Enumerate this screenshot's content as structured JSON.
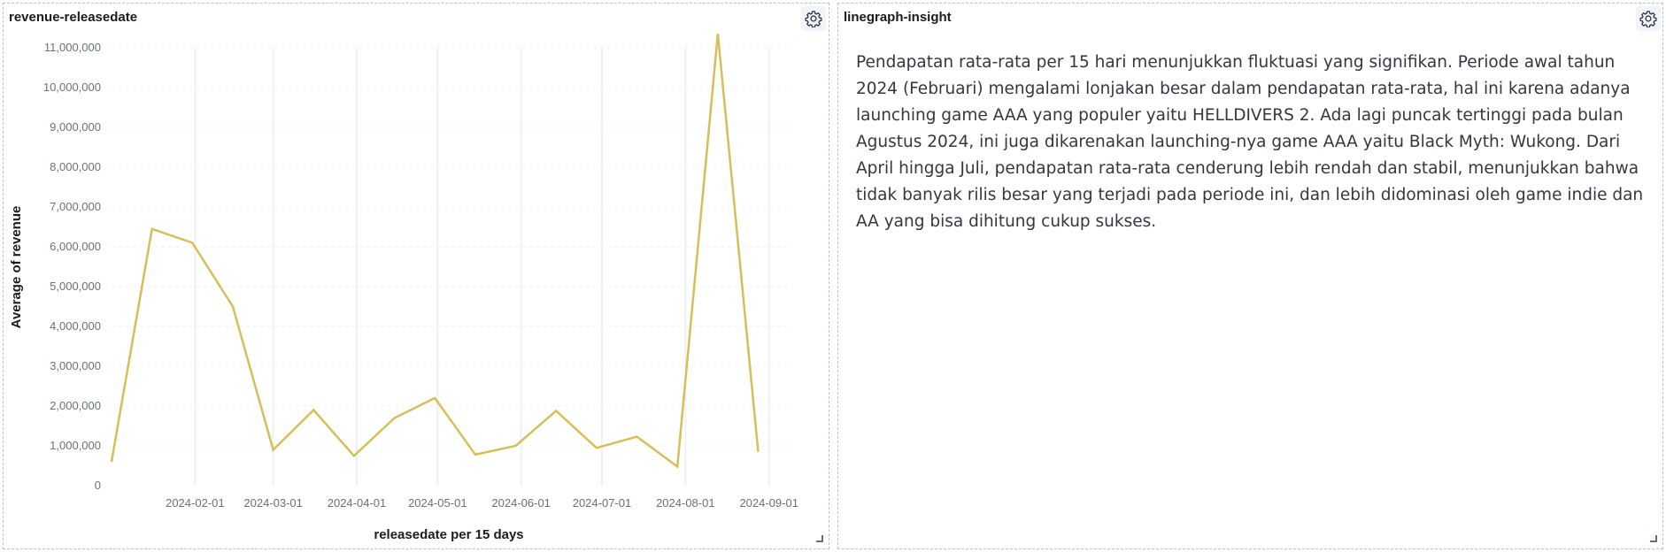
{
  "panels": {
    "left": {
      "title": "revenue-releasedate",
      "settings_icon": "gear-icon"
    },
    "right": {
      "title": "linegraph-insight",
      "settings_icon": "gear-icon",
      "text": "Pendapatan rata-rata per 15 hari menunjukkan fluktuasi yang signifikan. Periode awal tahun 2024 (Februari) mengalami lonjakan besar dalam pendapatan rata-rata, hal ini karena adanya launching game AAA yang populer yaitu HELLDIVERS 2. Ada lagi puncak tertinggi pada bulan Agustus 2024, ini juga dikarenakan launching-nya game AAA yaitu Black Myth: Wukong. Dari April hingga Juli, pendapatan rata-rata cenderung lebih rendah dan stabil, menunjukkan bahwa tidak banyak rilis besar yang terjadi pada periode ini, dan lebih didominasi oleh game indie dan AA yang bisa dihitung cukup sukses."
    }
  },
  "colors": {
    "line": "#d6bf57",
    "grid": "#eef0f3",
    "axis_text": "#69707d",
    "title_text": "#1a1c21",
    "panel_border": "#b9bfd6"
  },
  "chart_data": {
    "type": "line",
    "title": "",
    "xlabel": "releasedate per 15 days",
    "ylabel": "Average of revenue",
    "ylim": [
      0,
      11000000
    ],
    "xlim": [
      "2024-01-01",
      "2024-09-08"
    ],
    "x_ticks": [
      "2024-02-01",
      "2024-03-01",
      "2024-04-01",
      "2024-05-01",
      "2024-06-01",
      "2024-07-01",
      "2024-08-01",
      "2024-09-01"
    ],
    "y_ticks": [
      "0",
      "1,000,000",
      "2,000,000",
      "3,000,000",
      "4,000,000",
      "5,000,000",
      "6,000,000",
      "7,000,000",
      "8,000,000",
      "9,000,000",
      "10,000,000",
      "11,000,000"
    ],
    "grid": true,
    "legend": "none",
    "series": [
      {
        "x": [
          "2024-01-01",
          "2024-01-16",
          "2024-01-31",
          "2024-02-15",
          "2024-03-01",
          "2024-03-16",
          "2024-03-31",
          "2024-04-15",
          "2024-04-30",
          "2024-05-15",
          "2024-05-30",
          "2024-06-14",
          "2024-06-29",
          "2024-07-14",
          "2024-07-29",
          "2024-08-13",
          "2024-08-28"
        ],
        "values": [
          600000,
          6450000,
          6100000,
          4500000,
          900000,
          1900000,
          750000,
          1700000,
          2200000,
          780000,
          1000000,
          1880000,
          950000,
          1230000,
          480000,
          11350000,
          850000
        ]
      }
    ]
  }
}
